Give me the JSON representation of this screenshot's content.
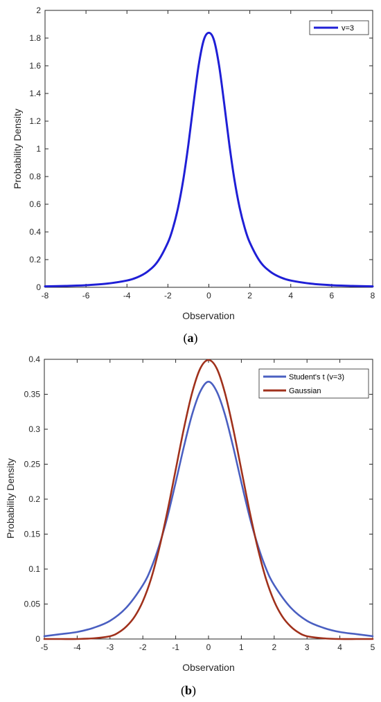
{
  "chart_data": [
    {
      "panel": "(a)",
      "type": "line",
      "xlabel": "Observation",
      "ylabel": "Probability Density",
      "xlim": [
        -8,
        8
      ],
      "ylim": [
        0,
        2
      ],
      "xticks": [
        -8,
        -6,
        -4,
        -2,
        0,
        2,
        4,
        6,
        8
      ],
      "yticks": [
        0,
        0.2,
        0.4,
        0.6,
        0.8,
        1,
        1.2,
        1.4,
        1.6,
        1.8,
        2
      ],
      "xtick_labels": [
        "-8",
        "-6",
        "-4",
        "-2",
        "0",
        "2",
        "4",
        "6",
        "8"
      ],
      "ytick_labels": [
        "0",
        "0.2",
        "0.4",
        "0.6",
        "0.8",
        "1",
        "1.2",
        "1.4",
        "1.6",
        "1.8",
        "2"
      ],
      "legend_position": "top-right",
      "grid": false,
      "series": [
        {
          "name": "v=3",
          "color": "#1f1fd6",
          "x": [
            -8,
            -7,
            -6,
            -5,
            -4,
            -3.5,
            -3,
            -2.5,
            -2,
            -1.75,
            -1.5,
            -1.25,
            -1,
            -0.75,
            -0.5,
            -0.25,
            0,
            0.25,
            0.5,
            0.75,
            1,
            1.25,
            1.5,
            1.75,
            2,
            2.5,
            3,
            3.5,
            4,
            5,
            6,
            7,
            8
          ],
          "y": [
            0.007,
            0.01,
            0.015,
            0.026,
            0.049,
            0.072,
            0.113,
            0.186,
            0.323,
            0.43,
            0.577,
            0.776,
            1.031,
            1.326,
            1.601,
            1.785,
            1.838,
            1.785,
            1.601,
            1.326,
            1.031,
            0.776,
            0.577,
            0.43,
            0.323,
            0.186,
            0.113,
            0.072,
            0.049,
            0.026,
            0.015,
            0.01,
            0.007
          ]
        }
      ]
    },
    {
      "panel": "(b)",
      "type": "line",
      "xlabel": "Observation",
      "ylabel": "Probability Density",
      "xlim": [
        -5,
        5
      ],
      "ylim": [
        0,
        0.4
      ],
      "xticks": [
        -5,
        -4,
        -3,
        -2,
        -1,
        0,
        1,
        2,
        3,
        4,
        5
      ],
      "yticks": [
        0,
        0.05,
        0.1,
        0.15,
        0.2,
        0.25,
        0.3,
        0.35,
        0.4
      ],
      "xtick_labels": [
        "-5",
        "-4",
        "-3",
        "-2",
        "-1",
        "0",
        "1",
        "2",
        "3",
        "4",
        "5"
      ],
      "ytick_labels": [
        "0",
        "0.05",
        "0.1",
        "0.15",
        "0.2",
        "0.25",
        "0.3",
        "0.35",
        "0.4"
      ],
      "legend_position": "top-right",
      "grid": false,
      "series": [
        {
          "name": "Student's t (v=3)",
          "color": "#4a5fc1",
          "x": [
            -5,
            -4.5,
            -4,
            -3.5,
            -3,
            -2.5,
            -2,
            -1.75,
            -1.5,
            -1.25,
            -1,
            -0.75,
            -0.5,
            -0.25,
            0,
            0.25,
            0.5,
            0.75,
            1,
            1.25,
            1.5,
            1.75,
            2,
            2.5,
            3,
            3.5,
            4,
            4.5,
            5
          ],
          "y": [
            0.004,
            0.007,
            0.01,
            0.016,
            0.026,
            0.045,
            0.077,
            0.101,
            0.134,
            0.175,
            0.224,
            0.275,
            0.321,
            0.354,
            0.368,
            0.354,
            0.321,
            0.275,
            0.224,
            0.175,
            0.134,
            0.101,
            0.077,
            0.045,
            0.026,
            0.016,
            0.01,
            0.007,
            0.004
          ]
        },
        {
          "name": "Gaussian",
          "color": "#a0311c",
          "x": [
            -5,
            -4.5,
            -4,
            -3.5,
            -3,
            -2.75,
            -2.5,
            -2.25,
            -2,
            -1.75,
            -1.5,
            -1.25,
            -1,
            -0.75,
            -0.5,
            -0.25,
            0,
            0.25,
            0.5,
            0.75,
            1,
            1.25,
            1.5,
            1.75,
            2,
            2.25,
            2.5,
            2.75,
            3,
            3.5,
            4,
            4.5,
            5
          ],
          "y": [
            0.0,
            0.0,
            0.0,
            0.001,
            0.004,
            0.009,
            0.018,
            0.032,
            0.054,
            0.086,
            0.13,
            0.183,
            0.242,
            0.301,
            0.352,
            0.387,
            0.399,
            0.387,
            0.352,
            0.301,
            0.242,
            0.183,
            0.13,
            0.086,
            0.054,
            0.032,
            0.018,
            0.009,
            0.004,
            0.001,
            0.0,
            0.0,
            0.0
          ]
        }
      ]
    }
  ],
  "captions": {
    "a": {
      "prefix": "(",
      "letter": "a",
      "suffix": ")"
    },
    "b": {
      "prefix": "(",
      "letter": "b",
      "suffix": ")"
    }
  }
}
